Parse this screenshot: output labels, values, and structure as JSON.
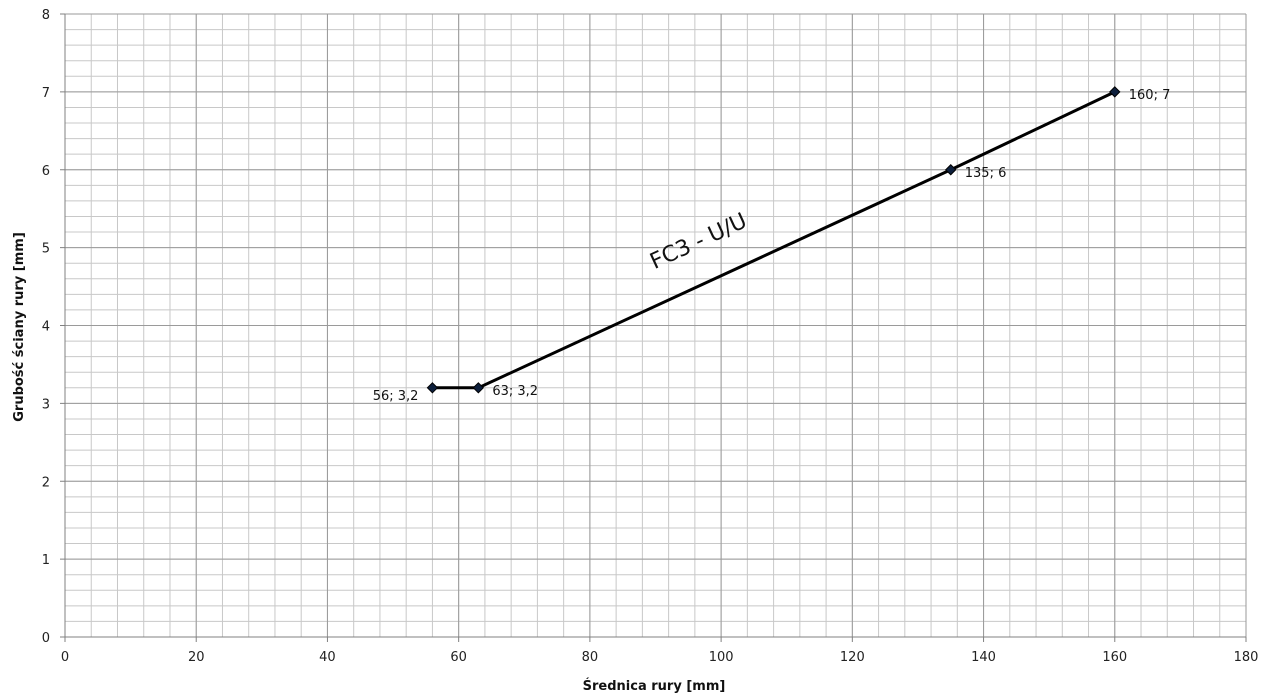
{
  "chart_data": {
    "type": "line",
    "title": "",
    "xlabel": "Średnica rury [mm]",
    "ylabel": "Grubość ściany rury [mm]",
    "xlim": [
      0,
      180
    ],
    "ylim": [
      0,
      8
    ],
    "xticks": [
      0,
      20,
      40,
      60,
      80,
      100,
      120,
      140,
      160,
      180
    ],
    "yticks": [
      0,
      1,
      2,
      3,
      4,
      5,
      6,
      7,
      8
    ],
    "grid": true,
    "legend": "none",
    "series": [
      {
        "x": [
          56,
          63,
          135,
          160
        ],
        "y": [
          3.2,
          3.2,
          6,
          7
        ],
        "labels": [
          "56; 3,2",
          "63; 3,2",
          "135; 6",
          "160; 7"
        ],
        "color": "#000000",
        "marker": "diamond",
        "marker_color": "#0d1f3c"
      }
    ],
    "annotations": [
      {
        "text": "FC3 - U/U",
        "x": 97,
        "y": 5.0
      }
    ]
  }
}
